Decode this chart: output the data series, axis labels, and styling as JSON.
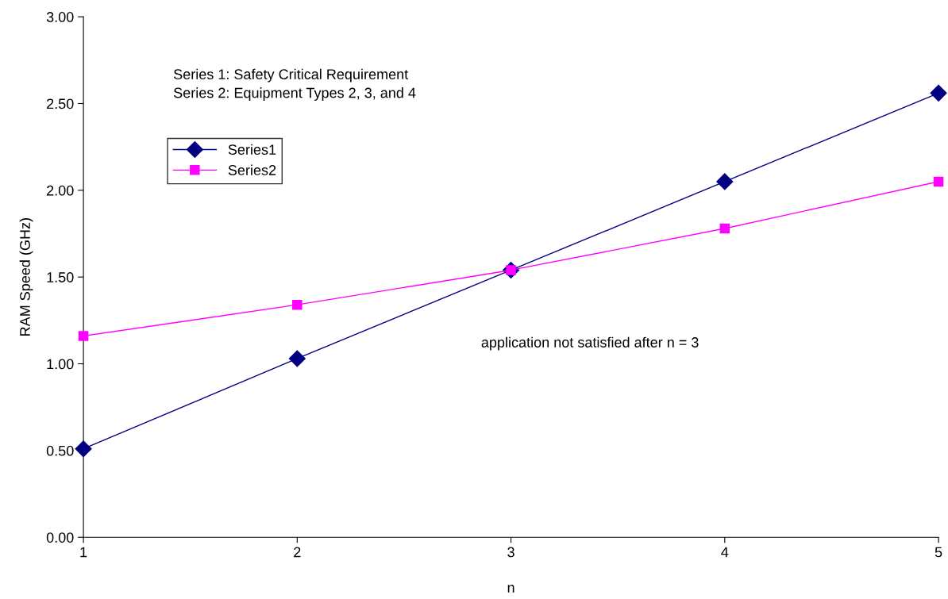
{
  "chart_data": {
    "type": "line",
    "xlabel": "n",
    "ylabel": "RAM Speed (GHz)",
    "x": [
      1,
      2,
      3,
      4,
      5
    ],
    "series": [
      {
        "name": "Series1",
        "color": "#000080",
        "marker": "diamond",
        "values": [
          0.51,
          1.03,
          1.54,
          2.05,
          2.56
        ]
      },
      {
        "name": "Series2",
        "color": "#ff00ff",
        "marker": "square",
        "values": [
          1.16,
          1.34,
          1.54,
          1.78,
          2.05
        ]
      }
    ],
    "xlim": [
      1,
      5
    ],
    "xticks": [
      1,
      2,
      3,
      4,
      5
    ],
    "ylim": [
      0,
      3
    ],
    "yticks": [
      {
        "value": 0,
        "label": "0.00"
      },
      {
        "value": 0.5,
        "label": "0.50"
      },
      {
        "value": 1,
        "label": "1.00"
      },
      {
        "value": 1.5,
        "label": "1.50"
      },
      {
        "value": 2,
        "label": "2.00"
      },
      {
        "value": 2.5,
        "label": "2.50"
      },
      {
        "value": 3,
        "label": "3.00"
      }
    ],
    "annotations": [
      "Series 1: Safety Critical Requirement\nSeries 2: Equipment Types 2, 3, and 4",
      "application not satisfied after n = 3"
    ],
    "legend": "top left",
    "grid": false
  }
}
